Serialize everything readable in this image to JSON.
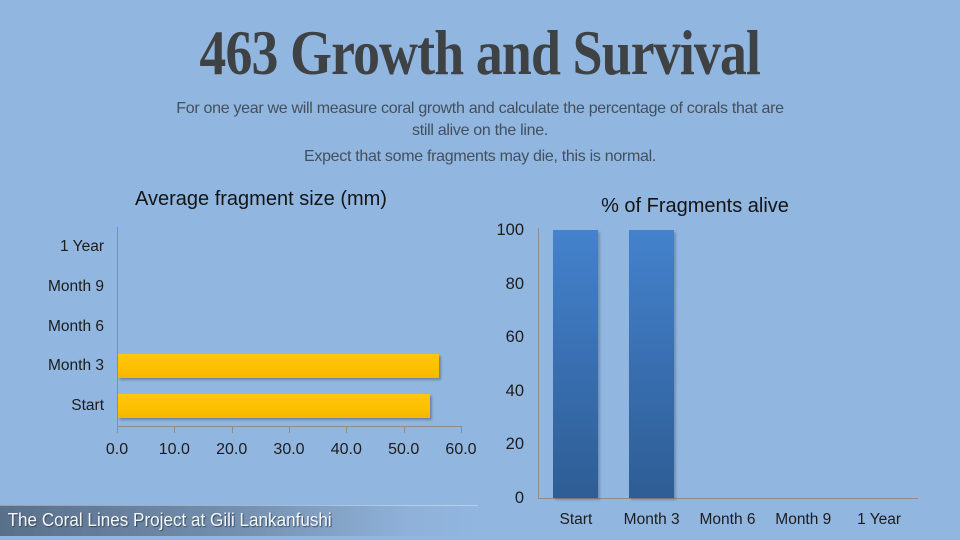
{
  "slide": {
    "title": "463 Growth and Survival",
    "subtitle_line1": "For one year we will measure coral growth and calculate the percentage of corals that are",
    "subtitle_line2": "still alive on the line.",
    "note": "Expect that some fragments may die, this is normal.",
    "footer": "The Coral Lines Project at Gili Lankanfushi"
  },
  "colors": {
    "background": "#91B6E0",
    "title_text": "#3F4245",
    "subtitle_text": "#43505C",
    "axis_line": "#8E8D8B",
    "tick_text": "#1C1C1C",
    "gold_bar": "#FFC000",
    "blue_bar_top": "#4482CC",
    "blue_bar_bottom": "#2E5D94",
    "footer_band": "#586C88",
    "footer_text": "#F5F8FB"
  },
  "chart_data": [
    {
      "type": "bar",
      "orientation": "horizontal",
      "title": "Average fragment size (mm)",
      "categories": [
        "Start",
        "Month 3",
        "Month 6",
        "Month 9",
        "1 Year"
      ],
      "values": [
        54.5,
        56,
        0,
        0,
        0
      ],
      "xlabel": "",
      "ylabel": "",
      "xlim": [
        0,
        60
      ],
      "xtick_step": 10,
      "xtick_labels": [
        "0.0",
        "10.0",
        "20.0",
        "30.0",
        "40.0",
        "50.0",
        "60.0"
      ],
      "grid": false,
      "legend": false,
      "bar_color": "#FFC000"
    },
    {
      "type": "bar",
      "orientation": "vertical",
      "title": "% of Fragments alive",
      "categories": [
        "Start",
        "Month 3",
        "Month 6",
        "Month 9",
        "1 Year"
      ],
      "values": [
        100,
        100,
        0,
        0,
        0
      ],
      "xlabel": "",
      "ylabel": "",
      "ylim": [
        0,
        100
      ],
      "ytick_step": 20,
      "ytick_labels": [
        "0",
        "20",
        "40",
        "60",
        "80",
        "100"
      ],
      "grid": false,
      "legend": false,
      "bar_color": "#3A71B4"
    }
  ]
}
